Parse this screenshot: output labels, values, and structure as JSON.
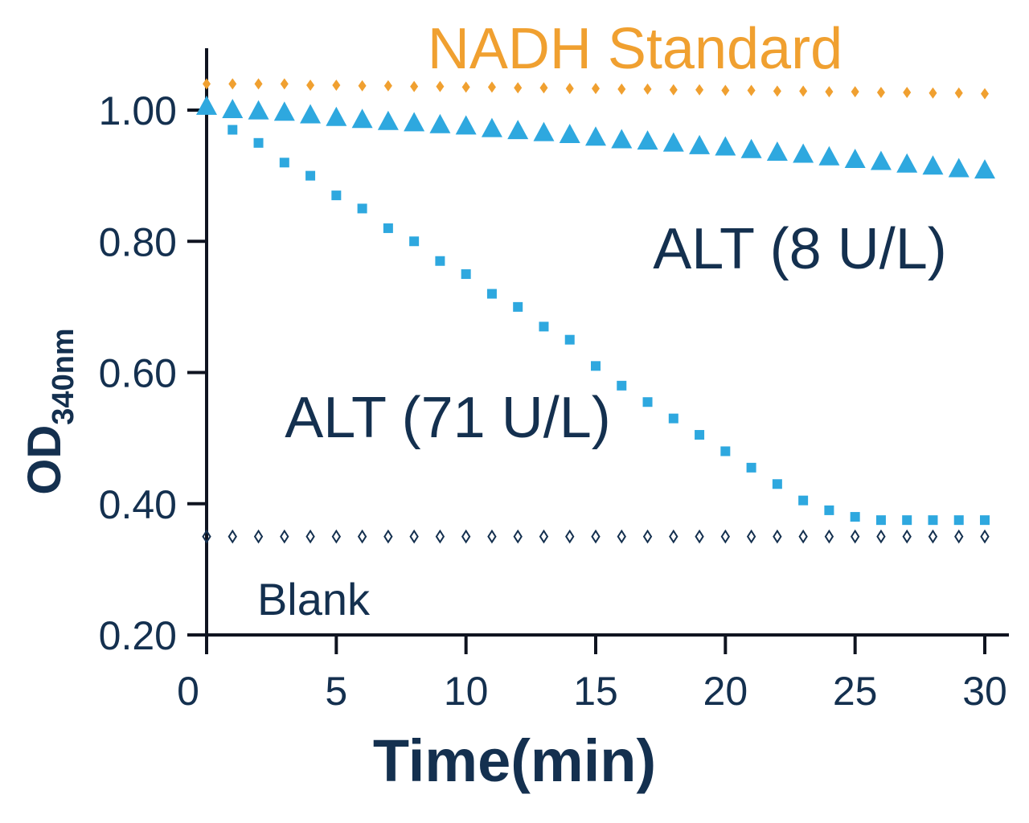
{
  "chart_data": {
    "type": "scatter",
    "title": "",
    "xlabel": "Time(min)",
    "ylabel": {
      "main": "OD",
      "subscript": "340nm"
    },
    "xlim": [
      0,
      30
    ],
    "ylim": [
      0.2,
      1.08
    ],
    "xticks": [
      {
        "value": 0,
        "label": "0"
      },
      {
        "value": 5,
        "label": "5"
      },
      {
        "value": 10,
        "label": "10"
      },
      {
        "value": 15,
        "label": "15"
      },
      {
        "value": 20,
        "label": "20"
      },
      {
        "value": 25,
        "label": "25"
      },
      {
        "value": 30,
        "label": "30"
      }
    ],
    "yticks": [
      {
        "value": 0.2,
        "label": "0.20"
      },
      {
        "value": 0.4,
        "label": "0.40"
      },
      {
        "value": 0.6,
        "label": "0.60"
      },
      {
        "value": 0.8,
        "label": "0.80"
      },
      {
        "value": 1.0,
        "label": "1.00"
      }
    ],
    "grid": false,
    "legend": "none",
    "annotations": [
      {
        "text": "NADH Standard",
        "series": "nadh"
      },
      {
        "text": "ALT (8 U/L)",
        "series": "alt8"
      },
      {
        "text": "ALT (71 U/L)",
        "series": "alt71"
      },
      {
        "text": "Blank",
        "series": "blank"
      }
    ],
    "series": [
      {
        "id": "nadh",
        "marker": "diamond",
        "color": "#f0a030",
        "x": [
          0,
          1,
          2,
          3,
          4,
          5,
          6,
          7,
          8,
          9,
          10,
          11,
          12,
          13,
          14,
          15,
          16,
          17,
          18,
          19,
          20,
          21,
          22,
          23,
          24,
          25,
          26,
          27,
          28,
          29,
          30
        ],
        "y": [
          1.04,
          1.04,
          1.04,
          1.04,
          1.038,
          1.038,
          1.037,
          1.037,
          1.036,
          1.036,
          1.035,
          1.035,
          1.034,
          1.034,
          1.033,
          1.033,
          1.032,
          1.032,
          1.031,
          1.031,
          1.03,
          1.03,
          1.029,
          1.029,
          1.028,
          1.028,
          1.027,
          1.027,
          1.026,
          1.026,
          1.025
        ]
      },
      {
        "id": "alt8",
        "marker": "triangle",
        "color": "#2ea8df",
        "x": [
          0,
          1,
          2,
          3,
          4,
          5,
          6,
          7,
          8,
          9,
          10,
          11,
          12,
          13,
          14,
          15,
          16,
          17,
          18,
          19,
          20,
          21,
          22,
          23,
          24,
          25,
          26,
          27,
          28,
          29,
          30
        ],
        "y": [
          1.005,
          1.0,
          0.998,
          0.996,
          0.992,
          0.988,
          0.985,
          0.982,
          0.98,
          0.977,
          0.975,
          0.971,
          0.968,
          0.965,
          0.962,
          0.958,
          0.954,
          0.952,
          0.949,
          0.945,
          0.943,
          0.939,
          0.935,
          0.932,
          0.928,
          0.924,
          0.921,
          0.917,
          0.914,
          0.91,
          0.908
        ]
      },
      {
        "id": "alt71",
        "marker": "square",
        "color": "#2ea8df",
        "x": [
          1,
          2,
          3,
          4,
          5,
          6,
          7,
          8,
          9,
          10,
          11,
          12,
          13,
          14,
          15,
          16,
          17,
          18,
          19,
          20,
          21,
          22,
          23,
          24,
          25,
          26,
          27,
          28,
          29,
          30
        ],
        "y": [
          0.97,
          0.95,
          0.92,
          0.9,
          0.87,
          0.85,
          0.82,
          0.8,
          0.77,
          0.75,
          0.72,
          0.7,
          0.67,
          0.65,
          0.61,
          0.58,
          0.555,
          0.53,
          0.505,
          0.48,
          0.455,
          0.43,
          0.405,
          0.39,
          0.38,
          0.375,
          0.375,
          0.375,
          0.375,
          0.375
        ]
      },
      {
        "id": "blank",
        "marker": "open-diamond",
        "color": "#14304f",
        "x": [
          0,
          1,
          2,
          3,
          4,
          5,
          6,
          7,
          8,
          9,
          10,
          11,
          12,
          13,
          14,
          15,
          16,
          17,
          18,
          19,
          20,
          21,
          22,
          23,
          24,
          25,
          26,
          27,
          28,
          29,
          30
        ],
        "y": [
          0.35,
          0.35,
          0.35,
          0.35,
          0.35,
          0.35,
          0.35,
          0.35,
          0.35,
          0.35,
          0.35,
          0.35,
          0.35,
          0.35,
          0.35,
          0.35,
          0.35,
          0.35,
          0.35,
          0.35,
          0.35,
          0.35,
          0.35,
          0.35,
          0.35,
          0.35,
          0.35,
          0.35,
          0.35,
          0.35,
          0.35
        ]
      }
    ]
  },
  "colors": {
    "axis": "#0f1420",
    "text": "#14304f",
    "nadh": "#f0a030",
    "alt": "#2ea8df"
  }
}
